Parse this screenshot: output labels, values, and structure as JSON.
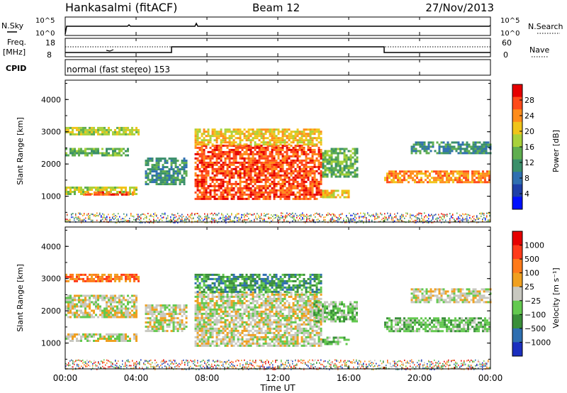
{
  "header": {
    "station": "Hankasalmi (fitACF)",
    "beam": "Beam 12",
    "date": "27/Nov/2013"
  },
  "top_panels": {
    "nsky_label": "N.Sky",
    "nsky_ticks": [
      "10^5",
      "10^0"
    ],
    "nsearch_label": "N.Search",
    "nsearch_ticks": [
      "10^5",
      "10^0"
    ],
    "freq_label": "Freq.",
    "freq_unit": "[MHz]",
    "freq_ticks": [
      "18",
      "8"
    ],
    "nave_label": "Nave",
    "nave_ticks": [
      "60",
      "0"
    ],
    "cpid_label": "CPID",
    "cpid_text": "normal (fast stereo) 153"
  },
  "chart_data": [
    {
      "type": "heatmap",
      "name": "power",
      "ylabel": "Slant Range [km]",
      "yticks": [
        "1000",
        "2000",
        "3000",
        "4000"
      ],
      "ylim": [
        200,
        4600
      ],
      "xlim": [
        0,
        24
      ],
      "colorbar_label": "Power [dB]",
      "colorbar_ticks": [
        "4",
        "8",
        "12",
        "16",
        "20",
        "24",
        "28"
      ],
      "colors": [
        "#0010ff",
        "#1e3fa8",
        "#2f6fb0",
        "#3a8f6a",
        "#5fae4f",
        "#a8d13a",
        "#f0c419",
        "#ff8c1a",
        "#ff4a1a",
        "#e60000"
      ],
      "regions": [
        {
          "t0": 0.0,
          "t1": 4.2,
          "r0": 2950,
          "r1": 3150,
          "level": 5
        },
        {
          "t0": 0.0,
          "t1": 3.6,
          "r0": 2300,
          "r1": 2500,
          "level": 4
        },
        {
          "t0": 0.0,
          "t1": 4.0,
          "r0": 1100,
          "r1": 1300,
          "level": 5
        },
        {
          "t0": 1.0,
          "t1": 4.0,
          "r0": 1050,
          "r1": 1150,
          "level": 8
        },
        {
          "t0": 4.5,
          "t1": 6.8,
          "r0": 1400,
          "r1": 2200,
          "level": 3
        },
        {
          "t0": 7.3,
          "t1": 14.5,
          "r0": 900,
          "r1": 2600,
          "level": 8
        },
        {
          "t0": 7.3,
          "t1": 14.5,
          "r0": 2600,
          "r1": 3100,
          "level": 6
        },
        {
          "t0": 14.5,
          "t1": 16.5,
          "r0": 1600,
          "r1": 2500,
          "level": 4
        },
        {
          "t0": 14.5,
          "t1": 16.0,
          "r0": 1000,
          "r1": 1200,
          "level": 6
        },
        {
          "t0": 18.0,
          "t1": 24.0,
          "r0": 1450,
          "r1": 1800,
          "level": 7
        },
        {
          "t0": 19.5,
          "t1": 24.0,
          "r0": 2350,
          "r1": 2700,
          "level": 3
        }
      ]
    },
    {
      "type": "heatmap",
      "name": "velocity",
      "ylabel": "Slant Range [km]",
      "yticks": [
        "1000",
        "2000",
        "3000",
        "4000"
      ],
      "ylim": [
        200,
        4600
      ],
      "xlim": [
        0,
        24
      ],
      "colorbar_label": "Velocity [m s⁻¹]",
      "colorbar_ticks": [
        "1000",
        "500",
        "100",
        "25",
        "−25",
        "−100",
        "−500",
        "−1000"
      ],
      "colors": [
        "#1b2fbf",
        "#2f6fb0",
        "#3a8f3a",
        "#63c94f",
        "#c8c8c0",
        "#f0a020",
        "#ff7a1a",
        "#ff3a1a",
        "#e60000"
      ],
      "regions": [
        {
          "t0": 0.0,
          "t1": 4.2,
          "r0": 2950,
          "r1": 3150,
          "level": 6
        },
        {
          "t0": 0.0,
          "t1": 4.0,
          "r0": 1800,
          "r1": 2500,
          "level": 4
        },
        {
          "t0": 0.0,
          "t1": 4.0,
          "r0": 1100,
          "r1": 1300,
          "level": 4
        },
        {
          "t0": 4.5,
          "t1": 6.8,
          "r0": 1400,
          "r1": 2200,
          "level": 4
        },
        {
          "t0": 7.3,
          "t1": 14.5,
          "r0": 900,
          "r1": 2600,
          "level": 4
        },
        {
          "t0": 7.3,
          "t1": 14.5,
          "r0": 2600,
          "r1": 3150,
          "level": 2
        },
        {
          "t0": 14.0,
          "t1": 16.5,
          "r0": 1700,
          "r1": 2300,
          "level": 3
        },
        {
          "t0": 14.5,
          "t1": 16.0,
          "r0": 1000,
          "r1": 1200,
          "level": 3
        },
        {
          "t0": 18.0,
          "t1": 24.0,
          "r0": 1400,
          "r1": 1800,
          "level": 3
        },
        {
          "t0": 19.5,
          "t1": 24.0,
          "r0": 2300,
          "r1": 2700,
          "level": 4
        }
      ]
    }
  ],
  "x_axis": {
    "label": "Time UT",
    "ticks": [
      "00:00",
      "04:00",
      "08:00",
      "12:00",
      "16:00",
      "20:00",
      "00:00"
    ]
  }
}
